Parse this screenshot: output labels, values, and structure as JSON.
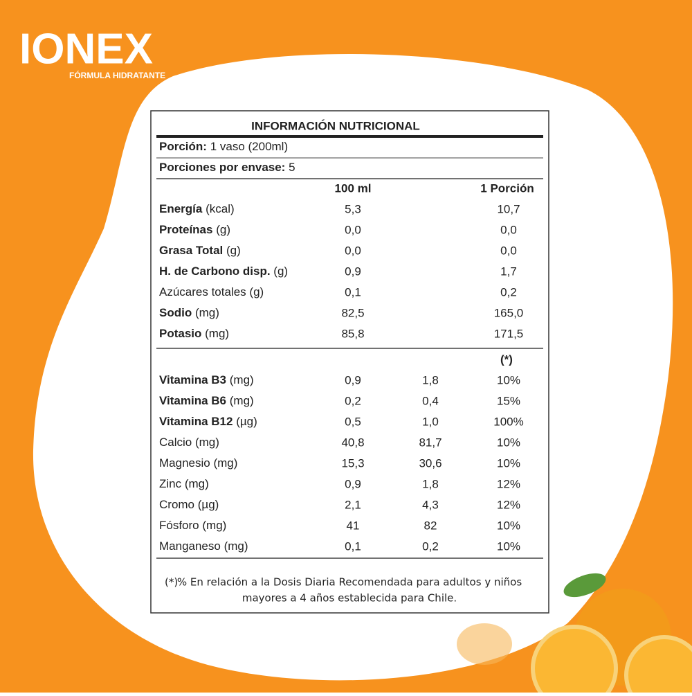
{
  "logo": {
    "brand": "IONEX",
    "tagline": "FÓRMULA HIDRATANTE"
  },
  "table": {
    "title": "INFORMACIÓN NUTRICIONAL",
    "serving": {
      "label": "Porción:",
      "value": "1 vaso (200ml)"
    },
    "servings_per_container": {
      "label": "Porciones por envase:",
      "value": "5"
    },
    "columns": [
      "100 ml",
      "1 Porción"
    ],
    "nutrients": [
      {
        "name": "Energía",
        "unit": "(kcal)",
        "per_100ml": "5,3",
        "per_portion": "10,7"
      },
      {
        "name": "Proteínas",
        "unit": "(g)",
        "per_100ml": "0,0",
        "per_portion": "0,0"
      },
      {
        "name": "Grasa Total",
        "unit": "(g)",
        "per_100ml": "0,0",
        "per_portion": "0,0"
      },
      {
        "name": "H. de Carbono disp.",
        "unit": "(g)",
        "per_100ml": "0,9",
        "per_portion": "1,7"
      },
      {
        "name": "Azúcares totales",
        "unit": "(g)",
        "per_100ml": "0,1",
        "per_portion": "0,2"
      },
      {
        "name": "Sodio",
        "unit": "(mg)",
        "per_100ml": "82,5",
        "per_portion": "165,0"
      },
      {
        "name": "Potasio",
        "unit": "(mg)",
        "per_100ml": "85,8",
        "per_portion": "171,5"
      }
    ],
    "daily_value_header": "(*)",
    "vitamins": [
      {
        "name": "Vitamina B3",
        "unit": "(mg)",
        "per_100ml": "0,9",
        "per_portion": "1,8",
        "daily_value": "10%"
      },
      {
        "name": "Vitamina B6",
        "unit": "(mg)",
        "per_100ml": "0,2",
        "per_portion": "0,4",
        "daily_value": "15%"
      },
      {
        "name": "Vitamina B12",
        "unit": "(µg)",
        "per_100ml": "0,5",
        "per_portion": "1,0",
        "daily_value": "100%"
      },
      {
        "name": "Calcio",
        "unit": "(mg)",
        "per_100ml": "40,8",
        "per_portion": "81,7",
        "daily_value": "10%"
      },
      {
        "name": "Magnesio",
        "unit": "(mg)",
        "per_100ml": "15,3",
        "per_portion": "30,6",
        "daily_value": "10%"
      },
      {
        "name": "Zinc",
        "unit": "(mg)",
        "per_100ml": "0,9",
        "per_portion": "1,8",
        "daily_value": "12%"
      },
      {
        "name": "Cromo",
        "unit": "(µg)",
        "per_100ml": "2,1",
        "per_portion": "4,3",
        "daily_value": "12%"
      },
      {
        "name": "Fósforo",
        "unit": "(mg)",
        "per_100ml": "41",
        "per_portion": "82",
        "daily_value": "10%"
      },
      {
        "name": "Manganeso",
        "unit": "(mg)",
        "per_100ml": "0,1",
        "per_portion": "0,2",
        "daily_value": "10%"
      }
    ],
    "footnote": {
      "marker": "(*)",
      "lines": [
        "% En relación a la Dosis Diaria Recomendada para adultos y niños",
        "mayores a 4 años establecida para Chile."
      ]
    }
  }
}
